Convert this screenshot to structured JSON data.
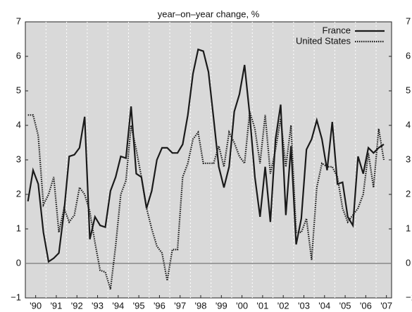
{
  "chart_data": {
    "type": "line",
    "title": "year–on–year change, %",
    "x": [
      1990.125,
      1990.375,
      1990.625,
      1990.875,
      1991.125,
      1991.375,
      1991.625,
      1991.875,
      1992.125,
      1992.375,
      1992.625,
      1992.875,
      1993.125,
      1993.375,
      1993.625,
      1993.875,
      1994.125,
      1994.375,
      1994.625,
      1994.875,
      1995.125,
      1995.375,
      1995.625,
      1995.875,
      1996.125,
      1996.375,
      1996.625,
      1996.875,
      1997.125,
      1997.375,
      1997.625,
      1997.875,
      1998.125,
      1998.375,
      1998.625,
      1998.875,
      1999.125,
      1999.375,
      1999.625,
      1999.875,
      2000.125,
      2000.375,
      2000.625,
      2000.875,
      2001.125,
      2001.375,
      2001.625,
      2001.875,
      2002.125,
      2002.375,
      2002.625,
      2002.875,
      2003.125,
      2003.375,
      2003.625,
      2003.875,
      2004.125,
      2004.375,
      2004.625,
      2004.875,
      2005.125,
      2005.375,
      2005.625,
      2005.875,
      2006.125,
      2006.375,
      2006.625,
      2006.875,
      2007.125,
      2007.375
    ],
    "series": [
      {
        "name": "France",
        "color": "#1a1a1a",
        "dash": "solid",
        "values": [
          1.8,
          2.7,
          2.3,
          0.9,
          0.05,
          0.15,
          0.3,
          1.5,
          3.1,
          3.15,
          3.35,
          4.25,
          0.7,
          1.35,
          1.1,
          1.05,
          2.1,
          2.5,
          3.1,
          3.05,
          4.55,
          2.6,
          2.5,
          1.6,
          2.1,
          3.0,
          3.35,
          3.35,
          3.2,
          3.2,
          3.45,
          4.3,
          5.5,
          6.2,
          6.15,
          5.55,
          4.2,
          2.8,
          2.2,
          2.8,
          4.4,
          4.9,
          5.75,
          4.3,
          2.5,
          1.35,
          2.8,
          1.2,
          3.6,
          4.6,
          1.4,
          3.4,
          0.55,
          1.3,
          3.3,
          3.6,
          4.15,
          3.6,
          2.7,
          4.1,
          2.3,
          2.35,
          1.35,
          1.1,
          3.1,
          2.6,
          3.35,
          3.2,
          3.35,
          3.45
        ]
      },
      {
        "name": "United States",
        "color": "#1a1a1a",
        "dash": "dotted",
        "values": [
          4.3,
          4.3,
          3.7,
          1.7,
          2.0,
          2.5,
          0.9,
          1.6,
          1.2,
          1.4,
          2.2,
          2.0,
          1.5,
          0.6,
          -0.2,
          -0.25,
          -0.75,
          0.5,
          2.0,
          2.4,
          4.0,
          3.3,
          2.5,
          1.6,
          1.0,
          0.5,
          0.3,
          -0.5,
          0.4,
          0.4,
          2.5,
          2.9,
          3.6,
          3.8,
          2.9,
          2.9,
          2.9,
          3.4,
          2.8,
          3.8,
          3.5,
          3.1,
          2.9,
          4.4,
          3.9,
          2.9,
          4.3,
          2.6,
          3.3,
          4.2,
          2.8,
          4.0,
          0.9,
          0.9,
          1.3,
          0.1,
          2.2,
          2.9,
          2.8,
          2.8,
          2.5,
          1.6,
          1.2,
          1.4,
          1.6,
          2.0,
          3.2,
          2.2,
          3.9,
          3.0
        ]
      }
    ],
    "xlim": [
      1990,
      2007.75
    ],
    "xticks": [
      {
        "value": 1990.5,
        "label": "'90"
      },
      {
        "value": 1991.5,
        "label": "'91"
      },
      {
        "value": 1992.5,
        "label": "'92"
      },
      {
        "value": 1993.5,
        "label": "'93"
      },
      {
        "value": 1994.5,
        "label": "'94"
      },
      {
        "value": 1995.5,
        "label": "'95"
      },
      {
        "value": 1996.5,
        "label": "'96"
      },
      {
        "value": 1997.5,
        "label": "'97"
      },
      {
        "value": 1998.5,
        "label": "'98"
      },
      {
        "value": 1999.5,
        "label": "'99"
      },
      {
        "value": 2000.5,
        "label": "'00"
      },
      {
        "value": 2001.5,
        "label": "'01"
      },
      {
        "value": 2002.5,
        "label": "'02"
      },
      {
        "value": 2003.5,
        "label": "'03"
      },
      {
        "value": 2004.5,
        "label": "'04"
      },
      {
        "value": 2005.5,
        "label": "'05"
      },
      {
        "value": 2006.5,
        "label": "'06"
      },
      {
        "value": 2007.5,
        "label": "'07"
      }
    ],
    "ylim": [
      -1,
      7
    ],
    "yticks": [
      {
        "value": -1,
        "label": "−1"
      },
      0,
      1,
      2,
      3,
      4,
      5,
      6,
      7
    ],
    "legend": "top-right"
  }
}
